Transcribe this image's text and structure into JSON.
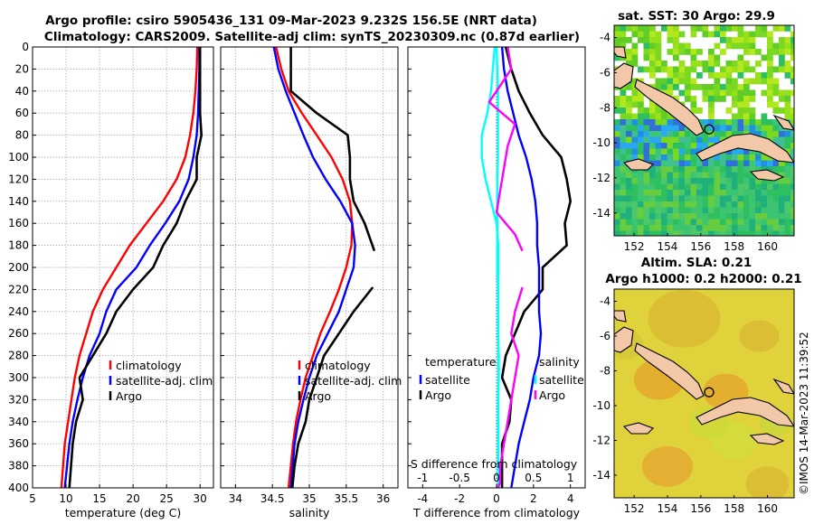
{
  "header": {
    "title_line1": "Argo profile: csiro 5905436_131 09-Mar-2023 9.232S 156.5E (NRT data)",
    "title_line2": "Climatology: CARS2009. Satellite-adj clim: synTS_20230309.nc (0.87d earlier)"
  },
  "watermark": "©IMOS 14-Mar-2023 11:39:52",
  "colors": {
    "climatology": "#ff0000",
    "satellite": "#0000ff",
    "argo": "#000000",
    "t_diff": "#00ffff",
    "s_diff": "#ff00ff"
  },
  "depth_axis": {
    "ticks": [
      0,
      20,
      40,
      60,
      80,
      100,
      120,
      140,
      160,
      180,
      200,
      220,
      240,
      260,
      280,
      300,
      320,
      340,
      360,
      380,
      400
    ],
    "ylim": [
      0,
      400
    ]
  },
  "chart_data": [
    {
      "type": "line",
      "name": "temperature",
      "xlabel": "temperature (deg C)",
      "xlim": [
        5,
        32
      ],
      "xticks": [
        5,
        10,
        15,
        20,
        25,
        30
      ],
      "legend": [
        "climatology",
        "satellite-adj. clim",
        "Argo"
      ],
      "series": [
        {
          "name": "climatology",
          "color": "#ff0000",
          "x": [
            29.6,
            29.5,
            29.3,
            29.0,
            28.5,
            27.8,
            26.5,
            24.5,
            22.0,
            19.5,
            17.5,
            15.5,
            14.0,
            13.0,
            12.0,
            11.3,
            10.8,
            10.3,
            9.8,
            9.3
          ],
          "y": [
            0,
            20,
            40,
            60,
            80,
            100,
            120,
            140,
            160,
            180,
            200,
            220,
            240,
            260,
            280,
            300,
            320,
            340,
            360,
            400
          ]
        },
        {
          "name": "satellite-adj. clim",
          "color": "#0000ff",
          "x": [
            29.9,
            29.9,
            29.8,
            29.7,
            29.5,
            29.0,
            28.3,
            26.9,
            24.8,
            22.5,
            20.5,
            17.5,
            16.0,
            15.0,
            13.5,
            12.5,
            11.7,
            11.0,
            10.5,
            9.8
          ],
          "y": [
            0,
            20,
            40,
            60,
            80,
            100,
            120,
            140,
            160,
            180,
            200,
            220,
            240,
            260,
            280,
            300,
            320,
            340,
            360,
            400
          ]
        },
        {
          "name": "Argo",
          "color": "#000000",
          "x": [
            30.0,
            30.0,
            30.0,
            30.0,
            30.2,
            29.5,
            29.5,
            27.8,
            26.5,
            24.5,
            23.0,
            20.0,
            17.5,
            16.0,
            14.0,
            12.0,
            12.5,
            11.5,
            11.0,
            10.5
          ],
          "y": [
            0,
            20,
            40,
            60,
            80,
            100,
            120,
            140,
            160,
            180,
            200,
            220,
            240,
            260,
            280,
            300,
            320,
            340,
            360,
            400
          ]
        }
      ]
    },
    {
      "type": "line",
      "name": "salinity",
      "xlabel": "salinity",
      "xlim": [
        33.8,
        36.2
      ],
      "xticks": [
        34,
        34.5,
        35,
        35.5,
        36
      ],
      "legend": [
        "climatology",
        "satellite-adj. clim",
        "Argo"
      ],
      "series": [
        {
          "name": "climatology",
          "color": "#ff0000",
          "x": [
            34.55,
            34.62,
            34.72,
            34.9,
            35.1,
            35.3,
            35.45,
            35.55,
            35.58,
            35.57,
            35.5,
            35.4,
            35.28,
            35.15,
            35.05,
            34.95,
            34.88,
            34.82,
            34.78,
            34.72
          ],
          "y": [
            0,
            20,
            40,
            60,
            80,
            100,
            120,
            140,
            160,
            180,
            200,
            220,
            240,
            260,
            280,
            300,
            320,
            340,
            360,
            400
          ]
        },
        {
          "name": "satellite-adj. clim",
          "color": "#0000ff",
          "x": [
            34.52,
            34.58,
            34.68,
            34.8,
            34.92,
            35.05,
            35.22,
            35.42,
            35.58,
            35.62,
            35.6,
            35.5,
            35.4,
            35.25,
            35.1,
            35.0,
            34.92,
            34.85,
            34.8,
            34.75
          ],
          "y": [
            0,
            20,
            40,
            60,
            80,
            100,
            120,
            140,
            160,
            180,
            200,
            220,
            240,
            260,
            280,
            300,
            320,
            340,
            360,
            400
          ]
        },
        {
          "name": "Argo",
          "color": "#000000",
          "x": [
            34.75,
            34.75,
            34.75,
            35.1,
            35.52,
            35.55,
            35.55,
            35.6,
            35.75,
            35.88
          ],
          "y": [
            0,
            20,
            40,
            60,
            80,
            100,
            120,
            140,
            160,
            185
          ]
        },
        {
          "name": "Argo",
          "color": "#000000",
          "x": [
            35.86,
            35.6,
            35.4,
            35.2,
            35.1,
            35.0,
            34.95,
            34.85,
            34.8,
            34.77
          ],
          "y": [
            218,
            240,
            260,
            280,
            300,
            320,
            340,
            360,
            380,
            400
          ]
        }
      ]
    },
    {
      "type": "line",
      "name": "difference_from_climatology",
      "xlabel": "T difference from climatology",
      "x2label": "S difference from climatology",
      "xlim": [
        -4.8,
        4.8
      ],
      "xticks": [
        -4,
        -2,
        0,
        2,
        4
      ],
      "x2lim": [
        -1.2,
        1.2
      ],
      "x2ticks": [
        -1,
        -0.5,
        0,
        0.5,
        1
      ],
      "legend_temperature": {
        "title": "temperature",
        "items": [
          "satellite",
          "Argo"
        ]
      },
      "legend_salinity": {
        "title": "salinity",
        "items": [
          "satellite",
          "Argo"
        ]
      },
      "series": [
        {
          "name": "temperature satellite",
          "color": "#00ffff",
          "x": [
            -0.1,
            -0.2,
            -0.3,
            -0.5,
            -0.8,
            -0.8,
            -0.6,
            -0.3,
            0.0,
            0.1,
            0.1,
            0.1,
            0.1,
            0.1,
            0.1,
            0.1,
            0.1,
            0.1,
            0.1,
            0.1
          ],
          "y": [
            0,
            20,
            40,
            60,
            80,
            100,
            120,
            140,
            160,
            180,
            200,
            220,
            240,
            260,
            280,
            300,
            320,
            340,
            360,
            400
          ]
        },
        {
          "name": "temperature Argo",
          "color": "#000000",
          "x": [
            0.5,
            0.8,
            1.2,
            1.8,
            2.5,
            3.5,
            3.8,
            4.0,
            3.7,
            3.8,
            2.5,
            2.5,
            1.5,
            1.0,
            0.5,
            0.3,
            0.8,
            0.7,
            0.3,
            0.3
          ],
          "y": [
            0,
            20,
            40,
            60,
            80,
            100,
            120,
            140,
            160,
            180,
            200,
            220,
            240,
            260,
            280,
            300,
            320,
            340,
            360,
            400
          ]
        },
        {
          "name": "temperature satellite-adj",
          "color": "#0000ff",
          "x": [
            0.3,
            0.4,
            0.6,
            0.9,
            1.2,
            1.6,
            1.9,
            2.1,
            2.2,
            2.2,
            2.3,
            2.3,
            2.3,
            2.4,
            2.3,
            2.0,
            1.8,
            1.5,
            1.2,
            0.8
          ],
          "y": [
            0,
            20,
            40,
            60,
            80,
            100,
            120,
            140,
            160,
            180,
            200,
            220,
            240,
            260,
            280,
            300,
            320,
            340,
            360,
            400
          ]
        },
        {
          "name": "salinity satellite",
          "color": "#00ffff",
          "axis": "S",
          "x": [
            0.0,
            0.01,
            0.02,
            0.02,
            0.02,
            0.02,
            0.01,
            0.01,
            0.01,
            0.01,
            0.01,
            0.02,
            0.02,
            0.02,
            0.03,
            0.03,
            0.02,
            0.02,
            0.02,
            0.02
          ],
          "y": [
            0,
            20,
            40,
            60,
            80,
            100,
            120,
            140,
            160,
            180,
            200,
            220,
            240,
            260,
            280,
            300,
            320,
            340,
            360,
            400
          ]
        },
        {
          "name": "salinity Argo",
          "color": "#ff00ff",
          "axis": "S",
          "x": [
            0.15,
            0.2,
            0.0,
            -0.1,
            0.25,
            0.15,
            0.1,
            0.05,
            0.0,
            0.25,
            0.35
          ],
          "y": [
            0,
            20,
            40,
            50,
            70,
            90,
            110,
            130,
            150,
            170,
            185
          ]
        },
        {
          "name": "salinity Argo",
          "color": "#ff00ff",
          "axis": "S",
          "x": [
            0.35,
            0.25,
            0.2,
            0.3,
            0.25,
            0.2,
            0.15,
            0.1,
            0.05,
            0.05,
            0.02
          ],
          "y": [
            218,
            240,
            260,
            280,
            300,
            320,
            340,
            360,
            380,
            395,
            400
          ]
        }
      ]
    }
  ],
  "maps": [
    {
      "name": "sst-map",
      "title": "sat. SST: 30 Argo: 29.9",
      "xticks": [
        152,
        154,
        156,
        158,
        160
      ],
      "yticks": [
        -4,
        -6,
        -8,
        -10,
        -12,
        -14
      ]
    },
    {
      "name": "sla-map",
      "title_line1": "Altim. SLA: 0.21",
      "title_line2": "Argo h1000: 0.2 h2000: 0.21",
      "xticks": [
        152,
        154,
        156,
        158,
        160
      ],
      "yticks": [
        -4,
        -6,
        -8,
        -10,
        -12,
        -14
      ]
    }
  ]
}
